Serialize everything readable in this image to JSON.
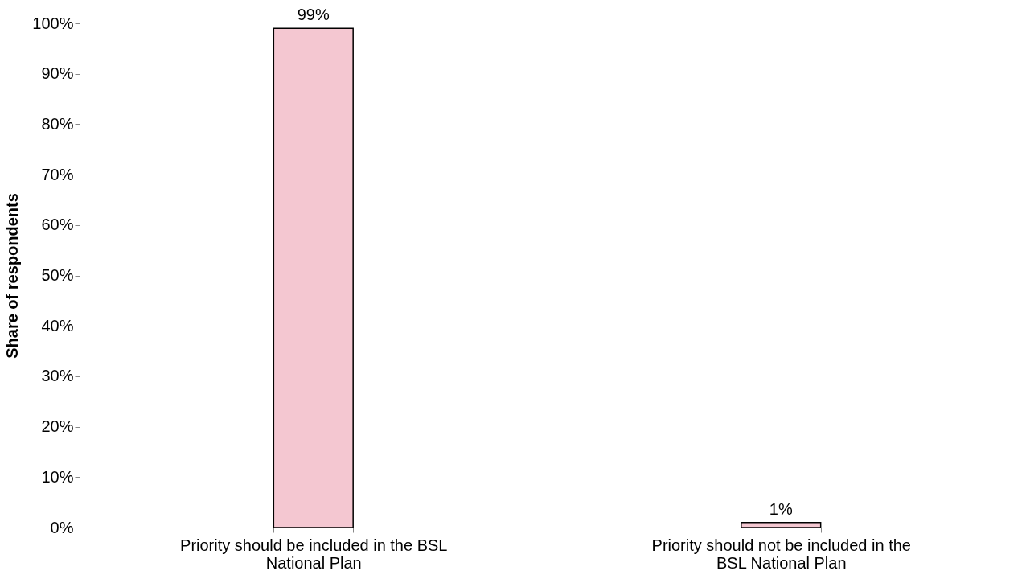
{
  "chart_data": {
    "type": "bar",
    "ylabel": "Share of respondents",
    "categories": [
      "Priority should be included in the BSL National Plan",
      "Priority should not be included in the BSL National Plan"
    ],
    "values": [
      99,
      1
    ],
    "value_labels": [
      "99%",
      "1%"
    ],
    "color": "#f4c7d1",
    "ylim": [
      0,
      100
    ],
    "yticks": [
      {
        "value": 0,
        "label": "0%"
      },
      {
        "value": 10,
        "label": "10%"
      },
      {
        "value": 20,
        "label": "20%"
      },
      {
        "value": 30,
        "label": "30%"
      },
      {
        "value": 40,
        "label": "40%"
      },
      {
        "value": 50,
        "label": "50%"
      },
      {
        "value": 60,
        "label": "60%"
      },
      {
        "value": 70,
        "label": "70%"
      },
      {
        "value": 80,
        "label": "80%"
      },
      {
        "value": 90,
        "label": "90%"
      },
      {
        "value": 100,
        "label": "100%"
      }
    ],
    "grid": false
  }
}
